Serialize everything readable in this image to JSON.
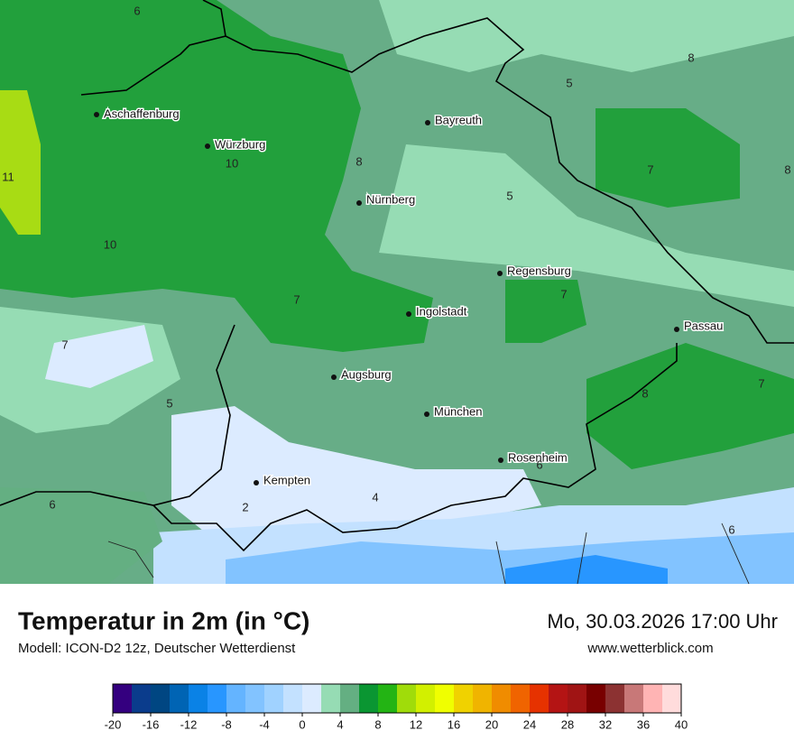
{
  "map": {
    "cities": [
      "Aschaffenburg",
      "Würzburg",
      "Bayreuth",
      "Nürnberg",
      "Regensburg",
      "Ingolstadt",
      "Passau",
      "Augsburg",
      "München",
      "Rosenheim",
      "Kempten"
    ],
    "isolabels": [
      6,
      5,
      8,
      8,
      10,
      11,
      5,
      7,
      8,
      10,
      7,
      7,
      7,
      5,
      8,
      7,
      6,
      4,
      2,
      6,
      6
    ]
  },
  "footer": {
    "title": "Temperatur in 2m (in °C)",
    "subtitle": "Modell: ICON-D2 12z, Deutscher Wetterdienst",
    "datetime": "Mo, 30.03.2026 17:00 Uhr",
    "website": "www.wetterblick.com"
  },
  "legend": {
    "ticks": [
      -20,
      -16,
      -12,
      -8,
      -4,
      0,
      4,
      8,
      12,
      16,
      20,
      24,
      28,
      32,
      36,
      40
    ],
    "colors": [
      "#34007f",
      "#0a3c8c",
      "#004682",
      "#0064b4",
      "#0a82e6",
      "#2896ff",
      "#64b4ff",
      "#82c3ff",
      "#a0d2ff",
      "#c3e1ff",
      "#dcebff",
      "#96dcb4",
      "#64af82",
      "#0a9632",
      "#23b414",
      "#a0dc0a",
      "#d2f000",
      "#f0ff00",
      "#f0d200",
      "#f0b400",
      "#f08c00",
      "#f06400",
      "#e63200",
      "#b41414",
      "#a01414",
      "#780000",
      "#8c3232",
      "#c87878",
      "#ffb4b4",
      "#ffdcdc"
    ]
  }
}
